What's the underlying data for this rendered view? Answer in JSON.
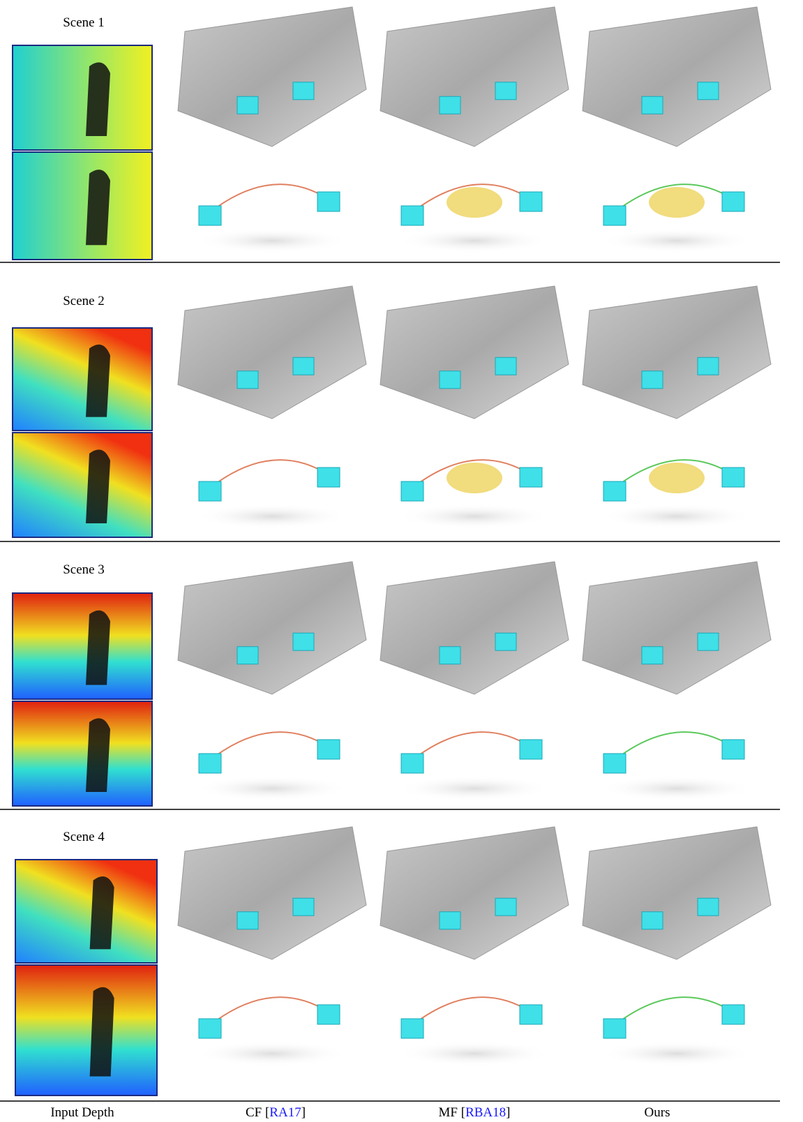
{
  "scenes": [
    {
      "label": "Scene 1"
    },
    {
      "label": "Scene 2"
    },
    {
      "label": "Scene 3"
    },
    {
      "label": "Scene 4"
    }
  ],
  "columns": [
    {
      "text": "Input Depth"
    },
    {
      "prefix": "CF [",
      "cite": "RA17",
      "suffix": "]"
    },
    {
      "prefix": "MF [",
      "cite": "RBA18",
      "suffix": "]"
    },
    {
      "text": "Ours"
    }
  ]
}
